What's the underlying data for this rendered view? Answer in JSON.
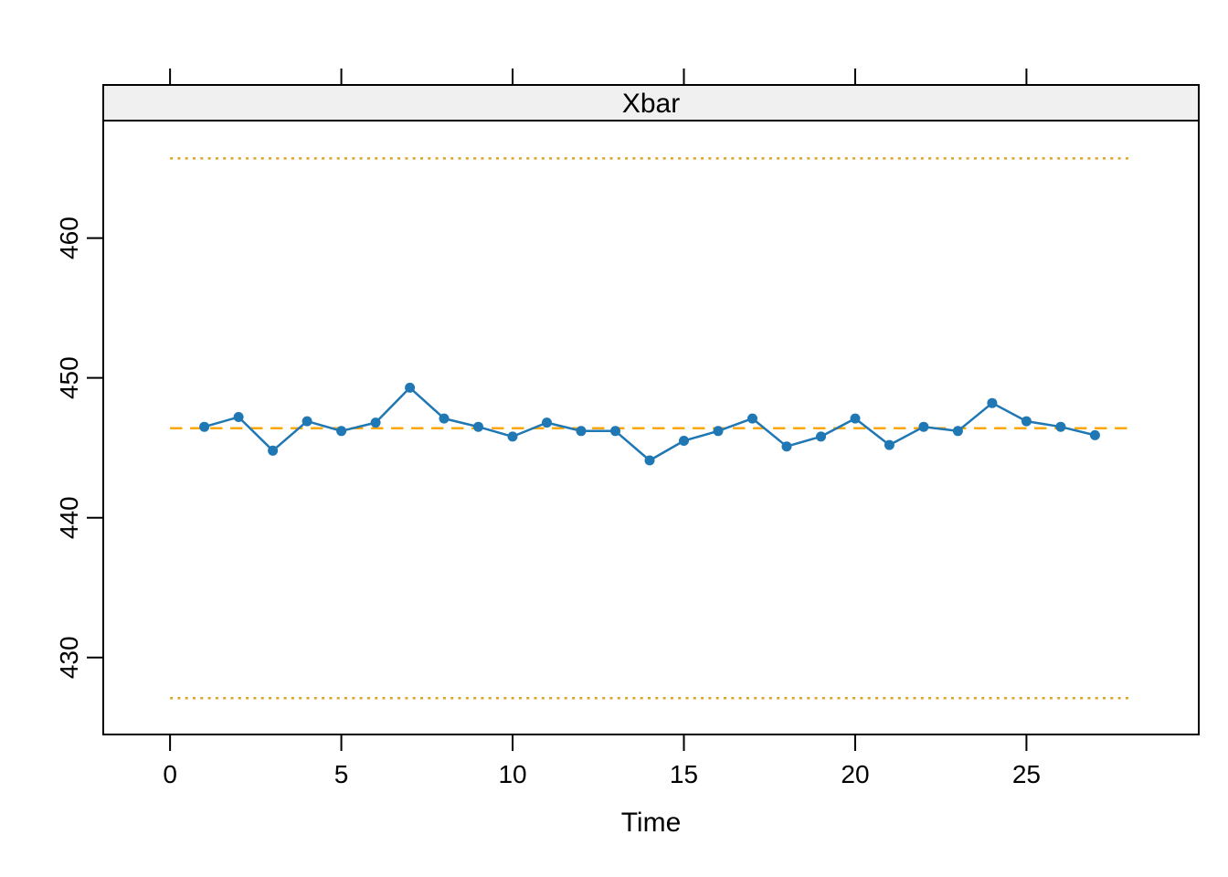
{
  "chart_data": {
    "type": "line",
    "chart_kind": "xbar-control-chart",
    "title": "Xbar",
    "xlabel": "Time",
    "ylabel": "",
    "x": [
      1,
      2,
      3,
      4,
      5,
      6,
      7,
      8,
      9,
      10,
      11,
      12,
      13,
      14,
      15,
      16,
      17,
      18,
      19,
      20,
      21,
      22,
      23,
      24,
      25,
      26,
      27
    ],
    "values": [
      446.5,
      447.2,
      444.8,
      446.9,
      446.2,
      446.8,
      449.3,
      447.1,
      446.5,
      445.8,
      446.8,
      446.2,
      446.2,
      444.1,
      445.5,
      446.2,
      447.1,
      445.1,
      445.8,
      447.1,
      445.2,
      446.5,
      446.2,
      448.2,
      446.9,
      446.5,
      445.9
    ],
    "center_line": 446.4,
    "upper_control_limit": 465.7,
    "lower_control_limit": 427.1,
    "limit_lines_x_span": [
      0,
      28
    ],
    "x_ticks": [
      0,
      5,
      10,
      15,
      20,
      25
    ],
    "y_ticks": [
      430,
      440,
      450,
      460
    ],
    "xlim": [
      -1.95,
      30.03
    ],
    "ylim": [
      424.5,
      468.4
    ],
    "grid": false,
    "legend": "none",
    "ticks_mirrored_top": true,
    "colors": {
      "series": "#1F77B4",
      "center_line": "#FFA500",
      "control_limits": "#DAA520",
      "strip_background": "#F0F0F0",
      "border": "#000000",
      "text": "#000000",
      "background": "#FFFFFF"
    }
  }
}
